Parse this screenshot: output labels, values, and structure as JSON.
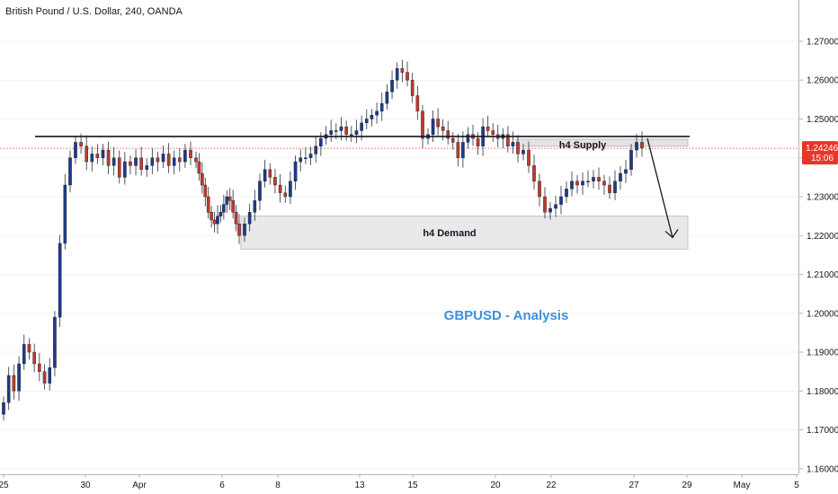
{
  "header": {
    "title": "British Pound / U.S. Dollar, 240, OANDA"
  },
  "annotation": {
    "headline": "GBPUSD - Analysis"
  },
  "zones": {
    "supply": {
      "label": "h4 Supply",
      "top": 1.2448,
      "bottom": 1.243
    },
    "demand": {
      "label": "h4 Demand",
      "top": 1.225,
      "bottom": 1.2165
    }
  },
  "price_badge": {
    "price": "1.24246",
    "timer": "15:06"
  },
  "resistance_level": 1.2455,
  "colors": {
    "up": "#1e3a8a",
    "down": "#c0392b",
    "badge": "#e8362a",
    "headline": "#3d8fe0"
  },
  "chart_data": {
    "type": "candlestick",
    "title": "British Pound / U.S. Dollar, 240, OANDA",
    "ylim": [
      1.1595,
      1.276
    ],
    "y_ticks": [
      "1.27000",
      "1.26000",
      "1.25000",
      "1.24000",
      "1.23000",
      "1.22000",
      "1.21000",
      "1.20000",
      "1.19000",
      "1.18000",
      "1.17000",
      "1.16000"
    ],
    "x_ticks": [
      "25",
      "30",
      "Apr",
      "6",
      "8",
      "13",
      "15",
      "20",
      "22",
      "27",
      "29",
      "May",
      "5"
    ],
    "last_price": 1.24246,
    "segments": [
      [
        1.177,
        1.184,
        1.18,
        1.187,
        1.192,
        1.19,
        1.187,
        1.185,
        1.182,
        1.186,
        1.199,
        1.218,
        1.233,
        1.24
      ],
      [
        1.244,
        1.243,
        1.239,
        1.241,
        1.24,
        1.242,
        1.238,
        1.24,
        1.235,
        1.239,
        1.238,
        1.24,
        1.237,
        1.238,
        1.24,
        1.239,
        1.241,
        1.238,
        1.24,
        1.239,
        1.242,
        1.24
      ],
      [
        1.239,
        1.236,
        1.233,
        1.23,
        1.226,
        1.224,
        1.223,
        1.225,
        1.226,
        1.228,
        1.23,
        1.229,
        1.226,
        1.223,
        1.22
      ],
      [
        1.223,
        1.226,
        1.229,
        1.234,
        1.237,
        1.235,
        1.233,
        1.231,
        1.23,
        1.234,
        1.239,
        1.24,
        1.24,
        1.241,
        1.243,
        1.245,
        1.246,
        1.247,
        1.247,
        1.248,
        1.246,
        1.246,
        1.247,
        1.249,
        1.25,
        1.251,
        1.252,
        1.254,
        1.257,
        1.26,
        1.263,
        1.262,
        1.26,
        1.256,
        1.252,
        1.245
      ],
      [
        1.246,
        1.25,
        1.248,
        1.247,
        1.245,
        1.244,
        1.24,
        1.244,
        1.246,
        1.245,
        1.243,
        1.248,
        1.247,
        1.246,
        1.245,
        1.246,
        1.243,
        1.244,
        1.241
      ],
      [
        1.242,
        1.238,
        1.234,
        1.23,
        1.226,
        1.227,
        1.228,
        1.23,
        1.232,
        1.234,
        1.233,
        1.234,
        1.234,
        1.235,
        1.234,
        1.233,
        1.231,
        1.234,
        1.236,
        1.237,
        1.242,
        1.244,
        1.2425
      ]
    ],
    "forecast_arrow": {
      "from": 1.245,
      "to": 1.2195
    }
  }
}
